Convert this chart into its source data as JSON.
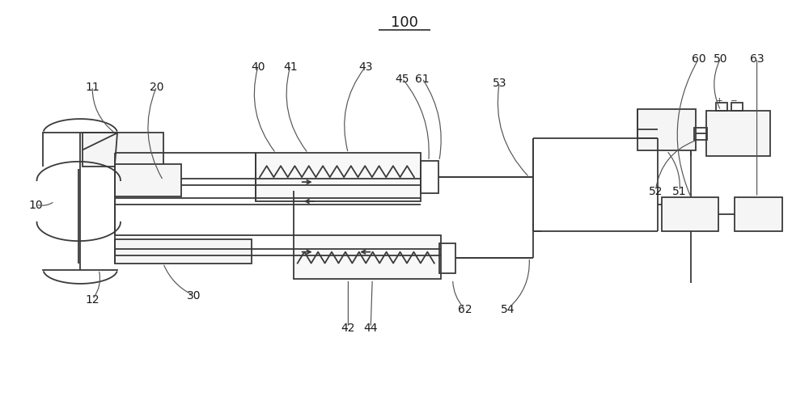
{
  "title": "100",
  "bg_color": "#ffffff",
  "line_color": "#3a3a3a",
  "label_color": "#1a1a1a",
  "figsize": [
    10.0,
    5.02
  ],
  "dpi": 100
}
